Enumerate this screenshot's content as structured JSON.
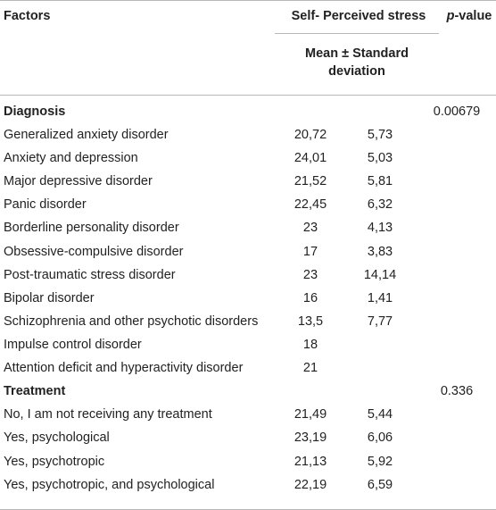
{
  "header": {
    "factors": "Factors",
    "stress": "Self- Perceived stress",
    "p_prefix": "p",
    "p_suffix": "-value",
    "sublabel_line1": "Mean ± Standard",
    "sublabel_line2": "deviation"
  },
  "sections": [
    {
      "title": "Diagnosis",
      "p_value": "0.00679",
      "rows": [
        {
          "factor": "Generalized anxiety disorder",
          "mean": "20,72",
          "sd": "5,73"
        },
        {
          "factor": "Anxiety and depression",
          "mean": "24,01",
          "sd": "5,03"
        },
        {
          "factor": "Major depressive disorder",
          "mean": "21,52",
          "sd": "5,81"
        },
        {
          "factor": "Panic disorder",
          "mean": "22,45",
          "sd": "6,32"
        },
        {
          "factor": "Borderline personality disorder",
          "mean": "23",
          "sd": "4,13"
        },
        {
          "factor": "Obsessive-compulsive disorder",
          "mean": "17",
          "sd": "3,83"
        },
        {
          "factor": "Post-traumatic stress disorder",
          "mean": "23",
          "sd": "14,14"
        },
        {
          "factor": "Bipolar disorder",
          "mean": "16",
          "sd": "1,41"
        },
        {
          "factor": "Schizophrenia and other psychotic disorders",
          "mean": "13,5",
          "sd": "7,77"
        },
        {
          "factor": "Impulse control disorder",
          "mean": "18",
          "sd": ""
        },
        {
          "factor": "Attention deficit and hyperactivity disorder",
          "mean": "21",
          "sd": ""
        }
      ]
    },
    {
      "title": "Treatment",
      "p_value": "0.336",
      "rows": [
        {
          "factor": "No, I am not receiving any treatment",
          "mean": "21,49",
          "sd": "5,44"
        },
        {
          "factor": "Yes, psychological",
          "mean": "23,19",
          "sd": "6,06"
        },
        {
          "factor": "Yes, psychotropic",
          "mean": "21,13",
          "sd": "5,92"
        },
        {
          "factor": "Yes, psychotropic, and psychological",
          "mean": "22,19",
          "sd": "6,59"
        }
      ]
    }
  ]
}
